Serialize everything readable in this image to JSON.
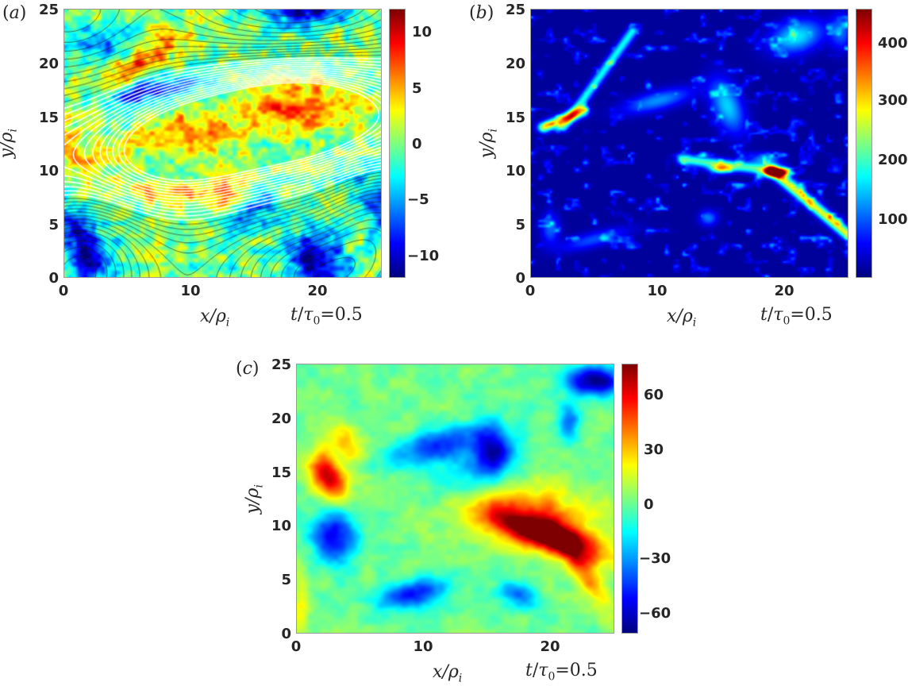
{
  "figure": {
    "panels": [
      {
        "id": "a",
        "label": "(a)",
        "xlabel": "x/ρ_i",
        "ylabel": "y/ρ_i",
        "time_label": "t/τ₀=0.5",
        "xticks": [
          "0",
          "10",
          "20"
        ],
        "yticks": [
          "0",
          "5",
          "10",
          "15",
          "20",
          "25"
        ],
        "colorbar_ticks": [
          "10",
          "5",
          "0",
          "−5",
          "−10"
        ],
        "colorbar_range": [
          -12,
          12
        ],
        "colormap": "jet",
        "overlay": "magnetic flux contours (white: inside separatrix, black: outside)"
      },
      {
        "id": "b",
        "label": "(b)",
        "xlabel": "x/ρ_i",
        "ylabel": "y/ρ_i",
        "time_label": "t/τ₀=0.5",
        "xticks": [
          "0",
          "10",
          "20"
        ],
        "yticks": [
          "0",
          "5",
          "10",
          "15",
          "20",
          "25"
        ],
        "colorbar_ticks": [
          "400",
          "300",
          "200",
          "100"
        ],
        "colorbar_range": [
          0,
          455
        ],
        "colormap": "jet"
      },
      {
        "id": "c",
        "label": "(c)",
        "xlabel": "x/ρ_i",
        "ylabel": "y/ρ_i",
        "time_label": "t/τ₀=0.5",
        "xticks": [
          "0",
          "10",
          "20"
        ],
        "yticks": [
          "0",
          "5",
          "10",
          "15",
          "20",
          "25"
        ],
        "colorbar_ticks": [
          "60",
          "30",
          "0",
          "−30",
          "−60"
        ],
        "colorbar_range": [
          -72,
          76
        ],
        "colormap": "jet"
      }
    ]
  },
  "chart_data": [
    {
      "type": "heatmap",
      "title": "(a)",
      "xlabel": "x/ρ_i",
      "ylabel": "y/ρ_i",
      "xlim": [
        0,
        25
      ],
      "ylim": [
        0,
        25
      ],
      "xticks": [
        0,
        10,
        20
      ],
      "yticks": [
        0,
        5,
        10,
        15,
        20,
        25
      ],
      "colorbar": {
        "min": -12,
        "max": 12,
        "ticks": [
          -10,
          -5,
          0,
          5,
          10
        ],
        "colormap": "jet"
      },
      "annotation": "t/τ0=0.5",
      "features": [
        {
          "desc": "red/orange closed island",
          "x": 19,
          "y": 15.5,
          "value": 8
        },
        {
          "desc": "yellow-red island",
          "x": 10,
          "y": 13,
          "value": 5
        },
        {
          "desc": "blue band",
          "x": 7,
          "y": 17.5,
          "value": -10
        },
        {
          "desc": "blue region bottom-left",
          "x": 1.5,
          "y": 3,
          "value": -11
        },
        {
          "desc": "blue region bottom-right",
          "x": 20,
          "y": 1.5,
          "value": -11
        },
        {
          "desc": "blue region top",
          "x": 19,
          "y": 25,
          "value": -11
        },
        {
          "desc": "red diagonal streak",
          "x": 6,
          "y": 20,
          "value": 8
        }
      ],
      "overlay": "white and black magnetic flux contour lines"
    },
    {
      "type": "heatmap",
      "title": "(b)",
      "xlabel": "x/ρ_i",
      "ylabel": "y/ρ_i",
      "xlim": [
        0,
        25
      ],
      "ylim": [
        0,
        25
      ],
      "xticks": [
        0,
        10,
        20
      ],
      "yticks": [
        0,
        5,
        10,
        15,
        20,
        25
      ],
      "colorbar": {
        "min": 0,
        "max": 455,
        "ticks": [
          100,
          200,
          300,
          400
        ],
        "colormap": "jet"
      },
      "annotation": "t/τ0=0.5",
      "features": [
        {
          "desc": "current sheet peak",
          "x": 19,
          "y": 10,
          "value": 420
        },
        {
          "desc": "current sheet diagonal",
          "x": 21.5,
          "y": 8,
          "value": 330
        },
        {
          "desc": "current sheet left",
          "x": 2.5,
          "y": 14.5,
          "value": 320
        },
        {
          "desc": "hot spot",
          "x": 15,
          "y": 10,
          "value": 300
        },
        {
          "desc": "top-right patch",
          "x": 21,
          "y": 22.5,
          "value": 220
        },
        {
          "desc": "background",
          "value": 10
        }
      ]
    },
    {
      "type": "heatmap",
      "title": "(c)",
      "xlabel": "x/ρ_i",
      "ylabel": "y/ρ_i",
      "xlim": [
        0,
        25
      ],
      "ylim": [
        0,
        25
      ],
      "xticks": [
        0,
        10,
        20
      ],
      "yticks": [
        0,
        5,
        10,
        15,
        20,
        25
      ],
      "colorbar": {
        "min": -72,
        "max": 76,
        "ticks": [
          -60,
          -30,
          0,
          30,
          60
        ],
        "colormap": "jet"
      },
      "annotation": "t/τ0=0.5",
      "features": [
        {
          "desc": "strong positive streak",
          "x": 20,
          "y": 9,
          "value": 75
        },
        {
          "desc": "positive patch",
          "x": 2.5,
          "y": 14,
          "value": 65
        },
        {
          "desc": "negative patch top-right",
          "x": 23.5,
          "y": 23.5,
          "value": -70
        },
        {
          "desc": "negative patch",
          "x": 3,
          "y": 9,
          "value": -55
        },
        {
          "desc": "negative patch",
          "x": 9,
          "y": 3.5,
          "value": -55
        },
        {
          "desc": "negative patch",
          "x": 15.5,
          "y": 17,
          "value": -50
        },
        {
          "desc": "background",
          "value": 0
        }
      ]
    }
  ]
}
